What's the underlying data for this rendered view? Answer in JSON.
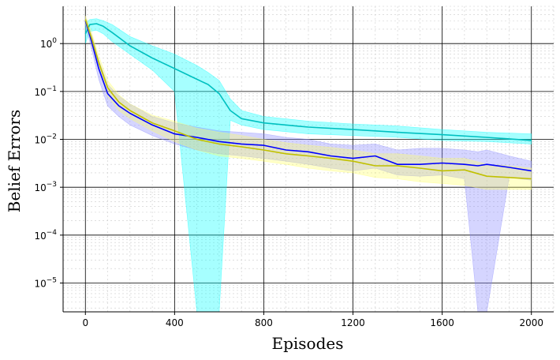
{
  "chart_data": {
    "type": "line",
    "title": "",
    "xlabel": "Episodes",
    "ylabel": "Belief Errors",
    "xlim": [
      -100,
      2100
    ],
    "ylim": [
      2.5e-06,
      6
    ],
    "yscale": "log",
    "grid": true,
    "legend": "none",
    "x_ticks": [
      0,
      400,
      800,
      1200,
      1600,
      2000
    ],
    "x_tick_labels": [
      "0",
      "400",
      "800",
      "1200",
      "1600",
      "2000"
    ],
    "y_ticks": [
      1,
      0.1,
      0.01,
      0.001,
      0.0001,
      1e-05
    ],
    "y_tick_labels": [
      {
        "base": "10",
        "exp": "0"
      },
      {
        "base": "10",
        "exp": "−1"
      },
      {
        "base": "10",
        "exp": "−2"
      },
      {
        "base": "10",
        "exp": "−3"
      },
      {
        "base": "10",
        "exp": "−4"
      },
      {
        "base": "10",
        "exp": "−5"
      }
    ],
    "series": [
      {
        "color": "#00c0c0",
        "band_color": "#00ffff",
        "x": [
          0,
          20,
          50,
          80,
          120,
          200,
          300,
          400,
          500,
          550,
          600,
          650,
          700,
          800,
          1000,
          1200,
          1400,
          1600,
          1800,
          2000
        ],
        "y": [
          1.6,
          2.5,
          2.6,
          2.3,
          1.7,
          0.9,
          0.5,
          0.3,
          0.18,
          0.14,
          0.09,
          0.04,
          0.027,
          0.022,
          0.018,
          0.016,
          0.014,
          0.0125,
          0.011,
          0.0095
        ],
        "lower": [
          1.0,
          1.8,
          1.9,
          1.6,
          1.1,
          0.6,
          0.28,
          0.1,
          1e-06,
          1e-06,
          1e-06,
          0.025,
          0.02,
          0.016,
          0.013,
          0.012,
          0.011,
          0.0095,
          0.009,
          0.008
        ],
        "upper": [
          2.6,
          3.2,
          3.3,
          3.0,
          2.5,
          1.4,
          0.9,
          0.6,
          0.35,
          0.25,
          0.17,
          0.07,
          0.04,
          0.03,
          0.024,
          0.021,
          0.019,
          0.016,
          0.014,
          0.013
        ]
      },
      {
        "color": "#0000ff",
        "band_color": "#8888ff",
        "x": [
          0,
          30,
          60,
          100,
          150,
          200,
          300,
          400,
          500,
          600,
          700,
          800,
          900,
          1000,
          1100,
          1200,
          1300,
          1400,
          1500,
          1600,
          1700,
          1760,
          1800,
          1900,
          2000
        ],
        "y": [
          3.0,
          1.0,
          0.3,
          0.09,
          0.05,
          0.035,
          0.02,
          0.013,
          0.011,
          0.009,
          0.008,
          0.0075,
          0.006,
          0.0055,
          0.0045,
          0.004,
          0.0045,
          0.003,
          0.003,
          0.0032,
          0.003,
          0.0028,
          0.003,
          0.0026,
          0.0022
        ],
        "lower": [
          2.4,
          0.7,
          0.18,
          0.05,
          0.03,
          0.02,
          0.012,
          0.008,
          0.006,
          0.005,
          0.0045,
          0.004,
          0.0035,
          0.003,
          0.0025,
          0.0022,
          0.0025,
          0.0018,
          0.0017,
          0.0018,
          0.0015,
          1e-06,
          1e-06,
          0.0016,
          0.0014
        ],
        "upper": [
          3.6,
          1.4,
          0.45,
          0.14,
          0.08,
          0.055,
          0.03,
          0.022,
          0.018,
          0.015,
          0.014,
          0.013,
          0.011,
          0.01,
          0.008,
          0.0075,
          0.008,
          0.006,
          0.0065,
          0.0065,
          0.006,
          0.0055,
          0.006,
          0.0045,
          0.0035
        ]
      },
      {
        "color": "#c0c000",
        "band_color": "#ffff66",
        "x": [
          0,
          30,
          60,
          100,
          150,
          200,
          300,
          400,
          500,
          600,
          700,
          800,
          900,
          1000,
          1100,
          1200,
          1300,
          1400,
          1500,
          1600,
          1700,
          1800,
          1900,
          2000
        ],
        "y": [
          3.2,
          1.2,
          0.4,
          0.12,
          0.06,
          0.04,
          0.022,
          0.015,
          0.01,
          0.008,
          0.007,
          0.006,
          0.005,
          0.0045,
          0.004,
          0.0035,
          0.0028,
          0.0028,
          0.0025,
          0.0022,
          0.0023,
          0.0017,
          0.0016,
          0.0015
        ],
        "lower": [
          2.6,
          0.9,
          0.28,
          0.08,
          0.04,
          0.027,
          0.015,
          0.009,
          0.006,
          0.0045,
          0.004,
          0.0035,
          0.003,
          0.0025,
          0.0022,
          0.002,
          0.0016,
          0.0015,
          0.0013,
          0.0012,
          0.0011,
          0.0009,
          0.0009,
          0.0009
        ],
        "upper": [
          3.8,
          1.6,
          0.55,
          0.17,
          0.085,
          0.055,
          0.032,
          0.024,
          0.017,
          0.014,
          0.012,
          0.01,
          0.0085,
          0.0075,
          0.0068,
          0.006,
          0.005,
          0.005,
          0.0045,
          0.004,
          0.004,
          0.003,
          0.0028,
          0.0025
        ]
      }
    ]
  }
}
